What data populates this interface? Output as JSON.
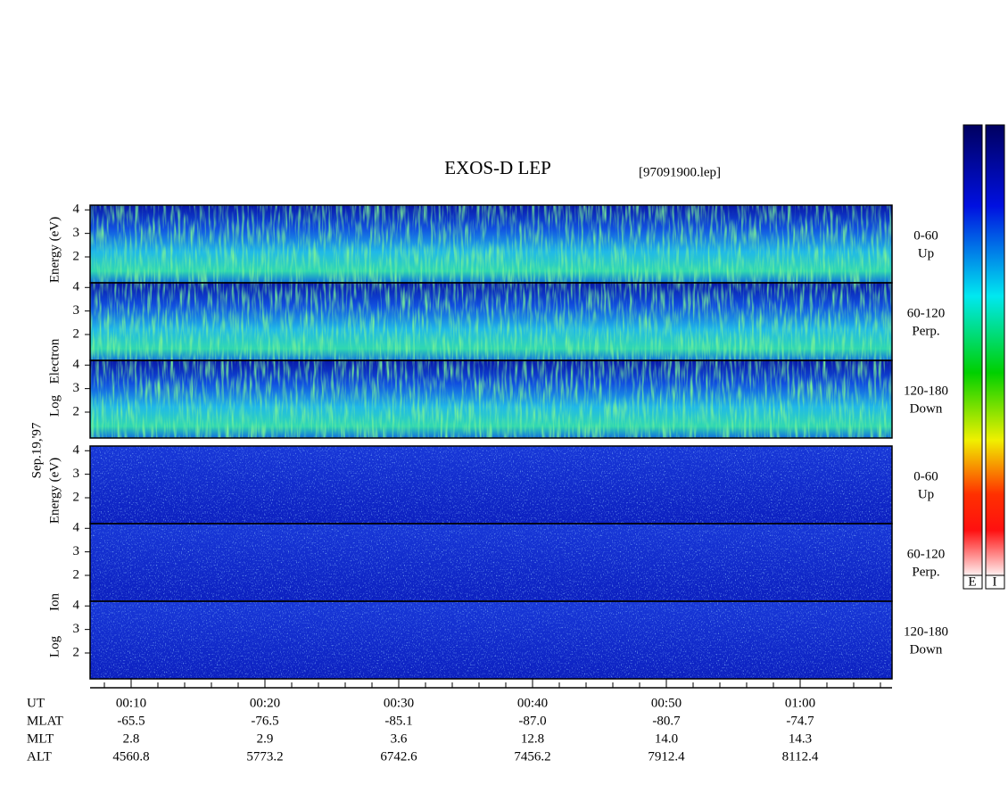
{
  "header": {
    "title": "EXOS-D LEP",
    "file": "[97091900.lep]"
  },
  "date": "Sep.19,'97",
  "ylim": [
    0.9,
    4.2
  ],
  "yticks": [
    2,
    3,
    4
  ],
  "electron": {
    "labels": [
      "Log",
      "Electron",
      "Energy (eV)"
    ],
    "panels": [
      {
        "angle": "0-60",
        "direction": "Up"
      },
      {
        "angle": "60-120",
        "direction": "Perp."
      },
      {
        "angle": "120-180",
        "direction": "Down"
      }
    ]
  },
  "ion": {
    "labels": [
      "Log",
      "Ion",
      "Energy (eV)"
    ],
    "panels": [
      {
        "angle": "0-60",
        "direction": "Up"
      },
      {
        "angle": "60-120",
        "direction": "Perp."
      },
      {
        "angle": "120-180",
        "direction": "Down"
      }
    ]
  },
  "ephemeris": {
    "rows": [
      {
        "name": "UT",
        "values": [
          "00:10",
          "00:20",
          "00:30",
          "00:40",
          "00:50",
          "01:00"
        ]
      },
      {
        "name": "MLAT",
        "values": [
          "-65.5",
          "-76.5",
          "-85.1",
          "-87.0",
          "-80.7",
          "-74.7"
        ]
      },
      {
        "name": "MLT",
        "values": [
          "2.8",
          "2.9",
          "3.6",
          "12.8",
          "14.0",
          "14.3"
        ]
      },
      {
        "name": "ALT",
        "values": [
          "4560.8",
          "5773.2",
          "6742.6",
          "7456.2",
          "7912.4",
          "8112.4"
        ]
      }
    ]
  },
  "colorbar": {
    "labels": [
      "E",
      "I"
    ]
  }
}
